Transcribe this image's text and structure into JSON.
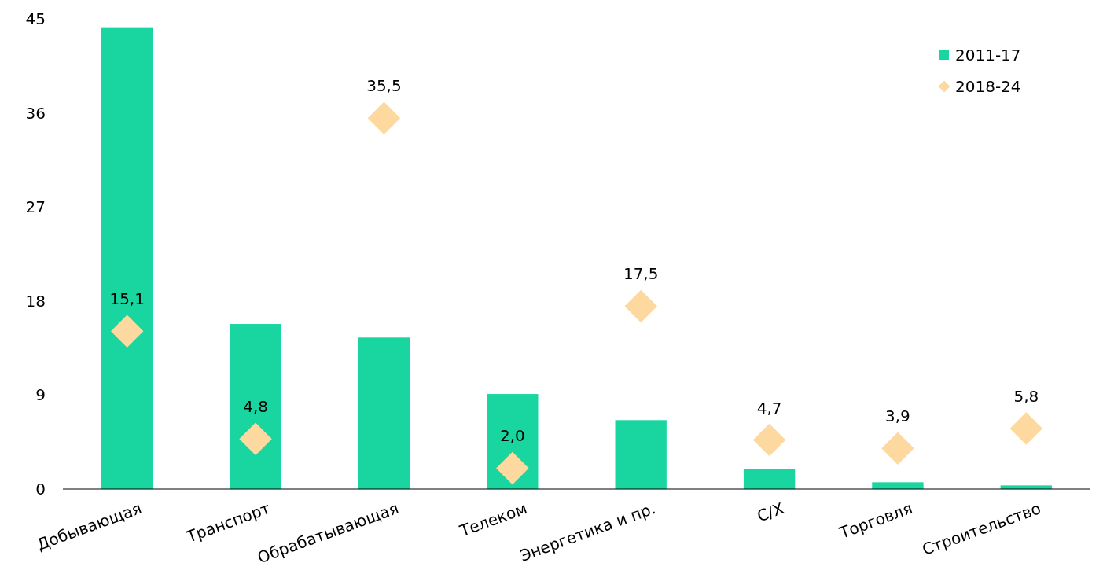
{
  "chart_data": {
    "type": "bar",
    "categories": [
      "Добывающая",
      "Транспорт",
      "Обрабатывающая",
      "Телеком",
      "Энергетика и пр.",
      "С/Х",
      "Торговля",
      "Строительство"
    ],
    "series": [
      {
        "name": "2011-17",
        "color": "#19d6a0",
        "values": [
          44.2,
          15.8,
          14.5,
          9.1,
          6.6,
          1.9,
          0.65,
          0.35
        ]
      },
      {
        "name": "2018-24",
        "type": "scatter",
        "color": "#fdd9a0",
        "values": [
          15.1,
          4.8,
          35.5,
          2.0,
          17.5,
          4.7,
          3.9,
          5.8
        ],
        "value_labels": [
          "15,1",
          "4,8",
          "35,5",
          "2,0",
          "17,5",
          "4,7",
          "3,9",
          "5,8"
        ]
      }
    ],
    "marker": "diamond",
    "ylim": [
      0,
      45
    ],
    "yticks": [
      0,
      9,
      18,
      27,
      36,
      45
    ],
    "grid": false,
    "legend": "top right"
  }
}
